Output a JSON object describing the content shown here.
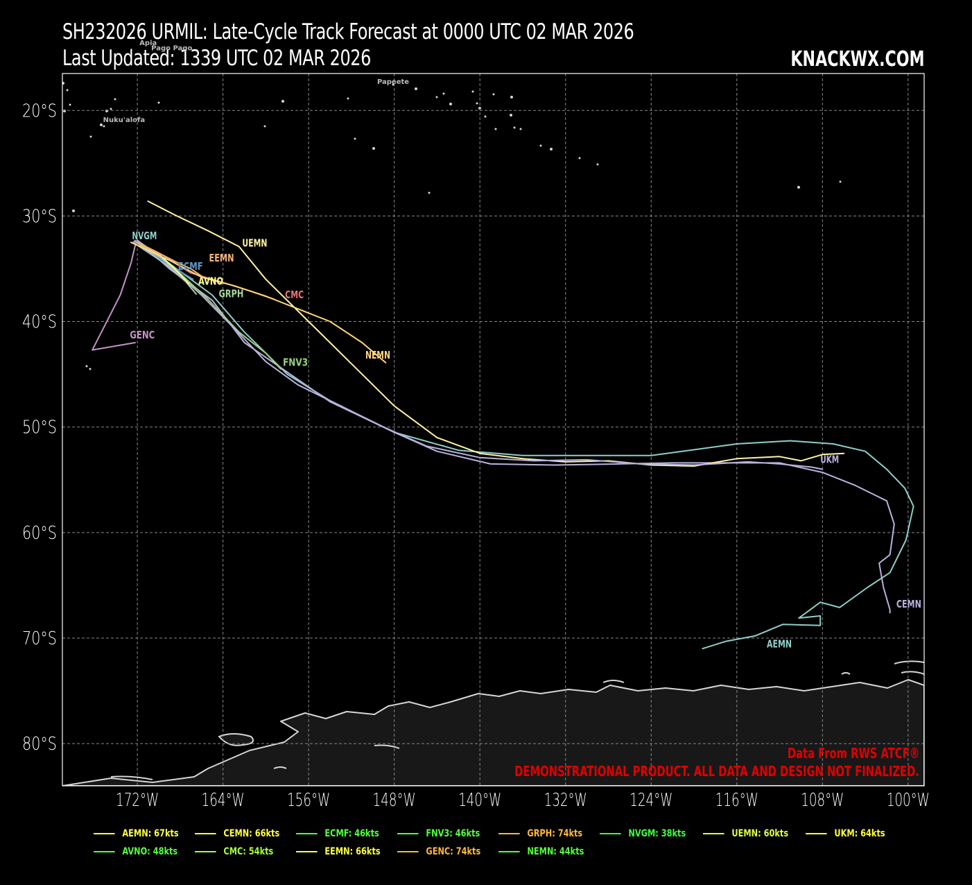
{
  "header": {
    "title_line1": "SH232026 URMIL: Late-Cycle Track Forecast at 0000 UTC 02 MAR 2026",
    "title_line2": "Last Updated: 1339 UTC 02 MAR 2026",
    "brand": "KNACKWX.COM"
  },
  "map": {
    "lon_range": [
      -179,
      -98.5
    ],
    "lat_range": [
      -16.5,
      -84
    ],
    "x_ticks": [
      {
        "lon": -172,
        "label": "172°W"
      },
      {
        "lon": -164,
        "label": "164°W"
      },
      {
        "lon": -156,
        "label": "156°W"
      },
      {
        "lon": -148,
        "label": "148°W"
      },
      {
        "lon": -140,
        "label": "140°W"
      },
      {
        "lon": -132,
        "label": "132°W"
      },
      {
        "lon": -124,
        "label": "124°W"
      },
      {
        "lon": -116,
        "label": "116°W"
      },
      {
        "lon": -108,
        "label": "108°W"
      },
      {
        "lon": -100,
        "label": "100°W"
      }
    ],
    "y_ticks": [
      {
        "lat": -20,
        "label": "20°S"
      },
      {
        "lat": -30,
        "label": "30°S"
      },
      {
        "lat": -40,
        "label": "40°S"
      },
      {
        "lat": -50,
        "label": "50°S"
      },
      {
        "lat": -60,
        "label": "60°S"
      },
      {
        "lat": -70,
        "label": "70°S"
      },
      {
        "lat": -80,
        "label": "80°S"
      }
    ],
    "places": [
      {
        "name": "Apia",
        "lon": -171.8,
        "lat": -13.8
      },
      {
        "name": "Pago Pago",
        "lon": -170.7,
        "lat": -14.3
      },
      {
        "name": "Papeete",
        "lon": -149.6,
        "lat": -17.5
      },
      {
        "name": "Nuku'alofa",
        "lon": -175.2,
        "lat": -21.1
      }
    ],
    "tracks": [
      {
        "id": "AEMN",
        "color": "#8ecfc9",
        "label_lon": -113.2,
        "label_lat": -70.9,
        "points": [
          [
            -172,
            -32.3
          ],
          [
            -169,
            -34.5
          ],
          [
            -165,
            -37.5
          ],
          [
            -162,
            -41
          ],
          [
            -158,
            -45
          ],
          [
            -154,
            -47.5
          ],
          [
            -148,
            -50.5
          ],
          [
            -142,
            -52.2
          ],
          [
            -136,
            -52.7
          ],
          [
            -124,
            -52.7
          ],
          [
            -116,
            -51.6
          ],
          [
            -111,
            -51.3
          ],
          [
            -107,
            -51.6
          ],
          [
            -104,
            -52.3
          ],
          [
            -102,
            -54
          ],
          [
            -100.3,
            -55.8
          ],
          [
            -99.5,
            -57.5
          ],
          [
            -100.2,
            -60.7
          ],
          [
            -101.7,
            -63.8
          ],
          [
            -103.8,
            -65.2
          ],
          [
            -106.4,
            -67.1
          ],
          [
            -108.2,
            -66.6
          ],
          [
            -110.2,
            -68.1
          ],
          [
            -108.2,
            -67.9
          ],
          [
            -108.2,
            -68.8
          ],
          [
            -111.7,
            -68.7
          ],
          [
            -114.3,
            -69.8
          ],
          [
            -117,
            -70.3
          ],
          [
            -119.2,
            -71
          ]
        ]
      },
      {
        "id": "CEMN",
        "color": "#b9b2dd",
        "label_lon": -101.1,
        "label_lat": -67.1,
        "points": [
          [
            -172,
            -32.3
          ],
          [
            -169,
            -35
          ],
          [
            -165,
            -38
          ],
          [
            -162,
            -42
          ],
          [
            -158,
            -44.8
          ],
          [
            -154,
            -47.6
          ],
          [
            -148,
            -50.5
          ],
          [
            -144,
            -52.3
          ],
          [
            -139,
            -53.5
          ],
          [
            -133,
            -53.6
          ],
          [
            -127,
            -53.5
          ],
          [
            -122,
            -53.4
          ],
          [
            -116,
            -53.4
          ],
          [
            -112,
            -53.4
          ],
          [
            -108,
            -54.3
          ],
          [
            -105,
            -55.5
          ],
          [
            -102,
            -57
          ],
          [
            -101.3,
            -59.2
          ],
          [
            -101.7,
            -62.1
          ],
          [
            -102.7,
            -62.9
          ],
          [
            -102.3,
            -65.2
          ],
          [
            -101.7,
            -67.3
          ],
          [
            -101.7,
            -67.6
          ]
        ]
      },
      {
        "id": "ECMF",
        "color": "#5a97c8",
        "label_lon": -168.2,
        "label_lat": -35.1,
        "points": [
          [
            -172.2,
            -32.3
          ],
          [
            -169.5,
            -34.3
          ],
          [
            -167.6,
            -35.5
          ],
          [
            -166.8,
            -36
          ]
        ]
      },
      {
        "id": "FNV3",
        "color": "#99d07a",
        "label_lon": -158.4,
        "label_lat": -44.2,
        "points": [
          [
            -172.2,
            -32.4
          ],
          [
            -169,
            -34.5
          ],
          [
            -165.5,
            -37.8
          ],
          [
            -162.5,
            -41
          ],
          [
            -160,
            -43
          ],
          [
            -158.6,
            -44.5
          ]
        ]
      },
      {
        "id": "GRPH",
        "color": "#a6d69b",
        "label_lon": -164.4,
        "label_lat": -37.7,
        "points": [
          [
            -172.2,
            -32.4
          ],
          [
            -169.5,
            -34.5
          ],
          [
            -167.5,
            -36.2
          ],
          [
            -166.5,
            -37.4
          ]
        ]
      },
      {
        "id": "NVGM",
        "color": "#8ecfc9",
        "label_lon": -172.5,
        "label_lat": -32.2,
        "points": [
          [
            -172.3,
            -32.4
          ],
          [
            -171.5,
            -32.8
          ],
          [
            -170.2,
            -33.6
          ],
          [
            -169.1,
            -34.6
          ],
          [
            -168.1,
            -35.5
          ]
        ]
      },
      {
        "id": "UEMN",
        "color": "#fff3a3",
        "label_lon": -162.2,
        "label_lat": -32.9,
        "points": [
          [
            -171,
            -28.6
          ],
          [
            -168.5,
            -29.9
          ],
          [
            -165.4,
            -31.4
          ],
          [
            -162.5,
            -32.9
          ],
          [
            -160,
            -36
          ],
          [
            -156,
            -40
          ],
          [
            -152,
            -44
          ],
          [
            -148,
            -48
          ],
          [
            -144,
            -51
          ],
          [
            -140,
            -52.5
          ],
          [
            -136,
            -53
          ],
          [
            -132,
            -53.3
          ],
          [
            -128,
            -53.2
          ],
          [
            -124,
            -53.6
          ],
          [
            -120,
            -53.7
          ],
          [
            -116,
            -53
          ],
          [
            -112,
            -52.8
          ],
          [
            -110,
            -53.2
          ],
          [
            -108,
            -52.6
          ],
          [
            -106,
            -52.5
          ]
        ]
      },
      {
        "id": "UKM",
        "color": "#b9b2dd",
        "label_lon": -108.2,
        "label_lat": -53.4,
        "points": [
          [
            -172.4,
            -32.5
          ],
          [
            -169,
            -34.8
          ],
          [
            -166,
            -37.5
          ],
          [
            -163,
            -40.6
          ],
          [
            -160,
            -43.8
          ],
          [
            -157,
            -46
          ],
          [
            -153,
            -48
          ],
          [
            -149,
            -50
          ],
          [
            -145,
            -51.8
          ],
          [
            -140,
            -52.9
          ],
          [
            -135,
            -53.2
          ],
          [
            -130,
            -53.1
          ],
          [
            -125,
            -53.5
          ],
          [
            -120,
            -53.6
          ],
          [
            -115,
            -53.3
          ],
          [
            -112,
            -53.5
          ],
          [
            -109,
            -53.8
          ],
          [
            -108,
            -54
          ]
        ]
      },
      {
        "id": "AVNO",
        "color": "#ffff88",
        "label_lon": -166.3,
        "label_lat": -36.5,
        "points": [
          [
            -172.2,
            -32.4
          ],
          [
            -170,
            -33.6
          ],
          [
            -168.4,
            -35.1
          ],
          [
            -167.2,
            -36.4
          ]
        ]
      },
      {
        "id": "CMC",
        "color": "#e8767a",
        "label_lon": -158.2,
        "label_lat": -37.8,
        "points": [
          [
            -172.2,
            -32.4
          ],
          [
            -169.5,
            -33.8
          ],
          [
            -167,
            -35.4
          ],
          [
            -164,
            -36.3
          ],
          [
            -161.5,
            -37.1
          ],
          [
            -159.2,
            -37.9
          ]
        ]
      },
      {
        "id": "EEMN",
        "color": "#f4b47a",
        "label_lon": -165.3,
        "label_lat": -34.3,
        "points": [
          [
            -172.2,
            -32.4
          ],
          [
            -170,
            -33.5
          ],
          [
            -168.5,
            -34.3
          ],
          [
            -167,
            -35
          ],
          [
            -166,
            -35.7
          ]
        ]
      },
      {
        "id": "GENC",
        "color": "#c293c5",
        "label_lon": -172.7,
        "label_lat": -41.6,
        "points": [
          [
            -172.1,
            -32.4
          ],
          [
            -172.6,
            -34.5
          ],
          [
            -173.6,
            -37.5
          ],
          [
            -175,
            -40.3
          ],
          [
            -176.2,
            -42.7
          ],
          [
            -172.2,
            -42
          ]
        ]
      },
      {
        "id": "NEMN",
        "color": "#ffd87d",
        "label_lon": -150.7,
        "label_lat": -43.5,
        "points": [
          [
            -172.6,
            -32.5
          ],
          [
            -169,
            -34.2
          ],
          [
            -166,
            -35.8
          ],
          [
            -163,
            -36.6
          ],
          [
            -160,
            -37.6
          ],
          [
            -157,
            -38.8
          ],
          [
            -154,
            -40
          ],
          [
            -151,
            -42
          ],
          [
            -148.8,
            -43.9
          ]
        ]
      }
    ],
    "credit_line1": "Data From RWS ATCF®",
    "credit_line2": "DEMONSTRATIONAL PRODUCT. ALL DATA AND DESIGN NOT FINALIZED."
  },
  "legend": {
    "items": [
      {
        "label": "AEMN: 67kts",
        "color": "#ffff3d"
      },
      {
        "label": "CEMN: 66kts",
        "color": "#ffff3d"
      },
      {
        "label": "ECMF: 46kts",
        "color": "#54ff3d"
      },
      {
        "label": "FNV3: 46kts",
        "color": "#54ff3d"
      },
      {
        "label": "GRPH: 74kts",
        "color": "#ffb83d"
      },
      {
        "label": "NVGM: 38kts",
        "color": "#3dff3d"
      },
      {
        "label": "UEMN: 60kts",
        "color": "#dfff3d"
      },
      {
        "label": "UKM: 64kts",
        "color": "#ffff3d"
      },
      {
        "label": "AVNO: 48kts",
        "color": "#54ff3d"
      },
      {
        "label": "CMC: 54kts",
        "color": "#a5ff3d"
      },
      {
        "label": "EEMN: 66kts",
        "color": "#ffff3d"
      },
      {
        "label": "GENC: 74kts",
        "color": "#ffb83d"
      },
      {
        "label": "NEMN: 44kts",
        "color": "#54ff3d"
      }
    ]
  }
}
